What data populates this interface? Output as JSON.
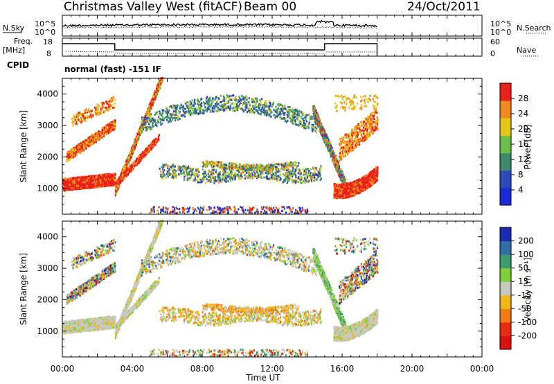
{
  "header": {
    "station": "Christmas Valley West (fitACF)",
    "beam": "Beam 00",
    "date": "24/Oct/2011"
  },
  "top_panels": {
    "nsky_label": "N.Sky",
    "nsearch_label": "N.Search",
    "noise_ticks_left": [
      "10^5",
      "10^0"
    ],
    "noise_ticks_right": [
      "10^5",
      "10^0"
    ],
    "freq_label_1": "Freq.",
    "freq_label_2": "[MHz]",
    "freq_ticks": [
      "18",
      "8"
    ],
    "nave_label": "Nave",
    "nave_ticks": [
      "60",
      "0"
    ],
    "cpid_label": "CPID",
    "cpid_text": "normal (fast) -151 IF"
  },
  "chart_data": [
    {
      "type": "heatmap",
      "name": "power",
      "ylabel": "Slant Range [km]",
      "yticks": [
        "1000",
        "2000",
        "3000",
        "4000"
      ],
      "ylim": [
        180,
        4500
      ],
      "colorbar_label": "Power [dB]",
      "colorbar_ticks": [
        "4",
        "8",
        "12",
        "16",
        "20",
        "24",
        "28"
      ],
      "colorbar_colors": [
        "#1a2bd6",
        "#2c4bb5",
        "#3f8a6d",
        "#6ebf4a",
        "#e6c619",
        "#f08a1c",
        "#e9211a"
      ]
    },
    {
      "type": "heatmap",
      "name": "velocity",
      "ylabel": "Slant Range [km]",
      "yticks": [
        "1000",
        "2000",
        "3000",
        "4000"
      ],
      "ylim": [
        180,
        4500
      ],
      "colorbar_label": "Velocity [m s⁻¹]",
      "colorbar_ticks": [
        "200",
        "100",
        "50",
        "15",
        "-15",
        "-50",
        "-100",
        "-200"
      ],
      "colorbar_colors": [
        "#1a2bb0",
        "#2e6fa8",
        "#3c9c6c",
        "#7fcf3a",
        "#c8c8c0",
        "#f0b61a",
        "#f07a14",
        "#e62d14",
        "#d81010"
      ]
    }
  ],
  "xaxis": {
    "ticks": [
      "00:00",
      "04:00",
      "08:00",
      "12:00",
      "16:00",
      "20:00",
      "00:00"
    ],
    "label": "Time UT"
  }
}
